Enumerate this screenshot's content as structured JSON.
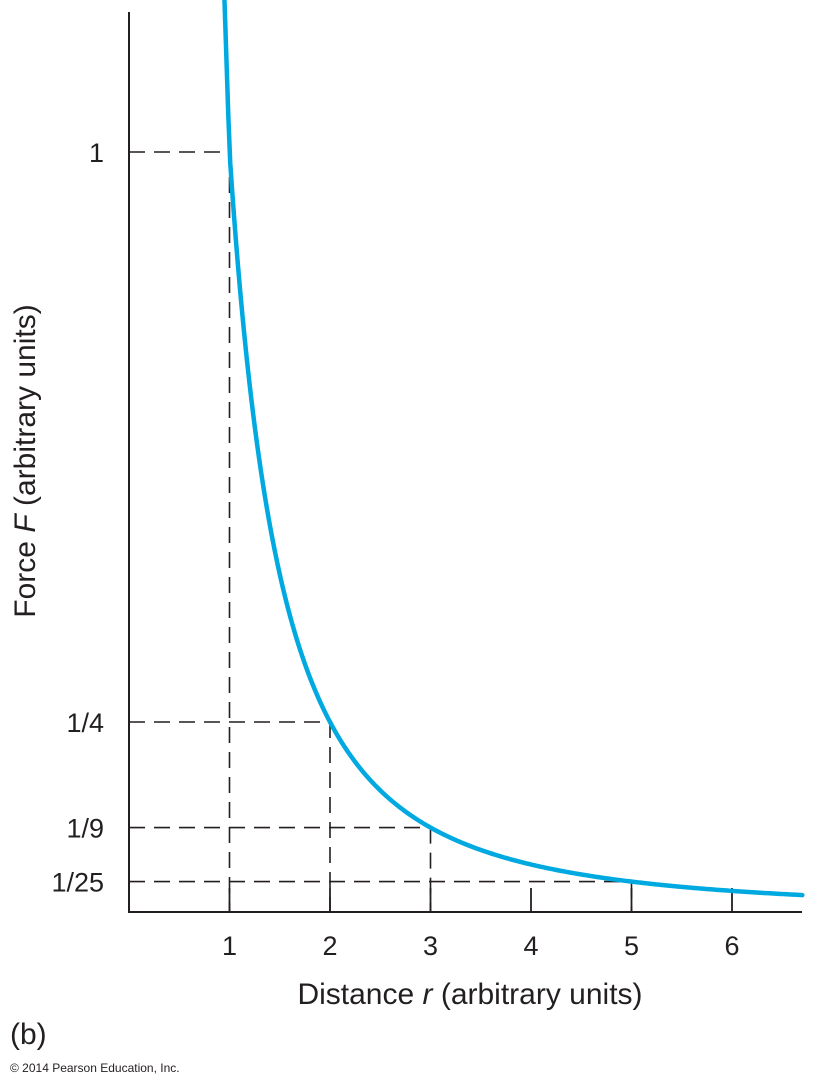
{
  "chart_data": {
    "type": "line",
    "title": "",
    "xlabel_prefix": "Distance ",
    "xlabel_var": "r",
    "xlabel_suffix": " (arbitrary units)",
    "ylabel_prefix": "Force ",
    "ylabel_var": "F",
    "ylabel_suffix": " (arbitrary units)",
    "function": "F = 1/r^2",
    "x_ticks": [
      {
        "value": 1,
        "label": "1"
      },
      {
        "value": 2,
        "label": "2"
      },
      {
        "value": 3,
        "label": "3"
      },
      {
        "value": 4,
        "label": "4"
      },
      {
        "value": 5,
        "label": "5"
      },
      {
        "value": 6,
        "label": "6"
      }
    ],
    "y_ticks": [
      {
        "value": 1,
        "label": "1"
      },
      {
        "value": 0.25,
        "label": "1/4"
      },
      {
        "value": 0.1111,
        "label": "1/9"
      },
      {
        "value": 0.04,
        "label": "1/25"
      }
    ],
    "reference_points": [
      {
        "x": 1,
        "y": 1
      },
      {
        "x": 2,
        "y": 0.25
      },
      {
        "x": 3,
        "y": 0.1111
      },
      {
        "x": 5,
        "y": 0.04
      }
    ],
    "series": [
      {
        "x": [
          0.95,
          1,
          1.1,
          1.2,
          1.3,
          1.4,
          1.5,
          1.75,
          2,
          2.5,
          3,
          3.5,
          4,
          4.5,
          5,
          5.5,
          6,
          6.7
        ],
        "y": [
          1.2,
          1.0,
          0.826,
          0.694,
          0.592,
          0.51,
          0.444,
          0.327,
          0.25,
          0.16,
          0.111,
          0.082,
          0.0625,
          0.049,
          0.04,
          0.033,
          0.028,
          0.022
        ]
      }
    ],
    "xlim": [
      0,
      6.7
    ],
    "ylim": [
      0,
      1.24
    ],
    "curve_color": "#00a9e0",
    "axis_color": "#231f20",
    "grid": false
  },
  "panel_label": "(b)",
  "copyright": "© 2014 Pearson Education, Inc."
}
